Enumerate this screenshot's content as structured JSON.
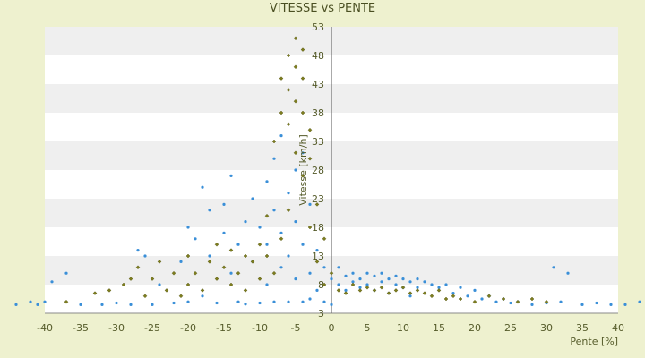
{
  "chart_data": {
    "type": "scatter",
    "title": "VITESSE vs PENTE",
    "xlabel": "Pente [%]",
    "ylabel": "Vitesse [km/h]",
    "xlim": [
      -40,
      40
    ],
    "ylim": [
      3,
      53
    ],
    "x_ticks": [
      -40,
      -35,
      -30,
      -25,
      -20,
      -15,
      -10,
      -5,
      0,
      5,
      10,
      15,
      20,
      25,
      30,
      35,
      40
    ],
    "y_ticks": [
      3,
      8,
      13,
      18,
      23,
      28,
      33,
      38,
      43,
      48,
      53
    ],
    "grid": "horizontal alternating bands",
    "legend": "none",
    "colors": {
      "series_a": "#3a8fd8",
      "series_b": "#7d7d1e",
      "band_light": "#ffffff",
      "band_dark": "#efefef",
      "background": "#eef1cf",
      "text": "#555b2a"
    },
    "series": [
      {
        "marker": "blue-dot",
        "color": "#3a8fd8",
        "points": [
          [
            -44,
            4.5
          ],
          [
            -42,
            5
          ],
          [
            -41,
            4.5
          ],
          [
            -40,
            5
          ],
          [
            -39,
            8.5
          ],
          [
            -37,
            10
          ],
          [
            -35,
            4.5
          ],
          [
            -32,
            4.5
          ],
          [
            -30,
            4.8
          ],
          [
            -28,
            4.5
          ],
          [
            -27,
            14
          ],
          [
            -26,
            13
          ],
          [
            -25,
            4.5
          ],
          [
            -24,
            8
          ],
          [
            -22,
            4.8
          ],
          [
            -21,
            12
          ],
          [
            -20,
            5
          ],
          [
            -20,
            18
          ],
          [
            -19,
            16
          ],
          [
            -18,
            25
          ],
          [
            -18,
            6
          ],
          [
            -17,
            13
          ],
          [
            -17,
            21
          ],
          [
            -16,
            4.8
          ],
          [
            -15,
            22
          ],
          [
            -15,
            17
          ],
          [
            -14,
            10
          ],
          [
            -14,
            27
          ],
          [
            -13,
            15
          ],
          [
            -13,
            5
          ],
          [
            -12,
            19
          ],
          [
            -12,
            4.6
          ],
          [
            -11,
            23
          ],
          [
            -11,
            12
          ],
          [
            -10,
            18
          ],
          [
            -10,
            4.8
          ],
          [
            -9,
            26
          ],
          [
            -9,
            15
          ],
          [
            -9,
            8
          ],
          [
            -8,
            21
          ],
          [
            -8,
            5
          ],
          [
            -8,
            30
          ],
          [
            -7,
            17
          ],
          [
            -7,
            11
          ],
          [
            -7,
            34
          ],
          [
            -6,
            24
          ],
          [
            -6,
            13
          ],
          [
            -6,
            5
          ],
          [
            -5,
            28
          ],
          [
            -5,
            19
          ],
          [
            -5,
            9
          ],
          [
            -4,
            31
          ],
          [
            -4,
            15
          ],
          [
            -4,
            5
          ],
          [
            -3,
            22
          ],
          [
            -3,
            10
          ],
          [
            -3,
            5.5
          ],
          [
            -2,
            14
          ],
          [
            -2,
            7
          ],
          [
            -1,
            11
          ],
          [
            -1,
            5
          ],
          [
            0,
            4.5
          ],
          [
            0,
            9
          ],
          [
            1,
            8
          ],
          [
            1,
            11
          ],
          [
            2,
            9.5
          ],
          [
            2,
            7
          ],
          [
            3,
            10
          ],
          [
            3,
            8.5
          ],
          [
            4,
            9
          ],
          [
            4,
            7.5
          ],
          [
            5,
            10
          ],
          [
            5,
            8
          ],
          [
            6,
            9.5
          ],
          [
            6,
            7
          ],
          [
            7,
            10
          ],
          [
            7,
            8.5
          ],
          [
            8,
            9
          ],
          [
            8,
            6.5
          ],
          [
            9,
            9.5
          ],
          [
            9,
            8
          ],
          [
            10,
            9
          ],
          [
            10,
            7.5
          ],
          [
            11,
            8.5
          ],
          [
            11,
            6
          ],
          [
            12,
            9
          ],
          [
            12,
            7.5
          ],
          [
            13,
            8.5
          ],
          [
            14,
            8
          ],
          [
            15,
            7.5
          ],
          [
            16,
            8
          ],
          [
            17,
            6.5
          ],
          [
            18,
            7.5
          ],
          [
            19,
            6
          ],
          [
            20,
            7
          ],
          [
            21,
            5.5
          ],
          [
            22,
            6
          ],
          [
            23,
            5
          ],
          [
            24,
            5.5
          ],
          [
            25,
            4.8
          ],
          [
            26,
            5
          ],
          [
            28,
            4.5
          ],
          [
            30,
            4.8
          ],
          [
            31,
            11
          ],
          [
            32,
            5
          ],
          [
            33,
            10
          ],
          [
            35,
            4.5
          ],
          [
            37,
            4.8
          ],
          [
            39,
            4.5
          ],
          [
            41,
            4.5
          ],
          [
            43,
            5
          ]
        ]
      },
      {
        "marker": "olive-diamond",
        "color": "#7d7d1e",
        "points": [
          [
            -37,
            5
          ],
          [
            -33,
            6.5
          ],
          [
            -31,
            7
          ],
          [
            -29,
            8
          ],
          [
            -28,
            9
          ],
          [
            -27,
            11
          ],
          [
            -26,
            6
          ],
          [
            -25,
            9
          ],
          [
            -24,
            12
          ],
          [
            -23,
            7
          ],
          [
            -22,
            10
          ],
          [
            -21,
            6
          ],
          [
            -20,
            13
          ],
          [
            -20,
            8
          ],
          [
            -19,
            10
          ],
          [
            -18,
            7
          ],
          [
            -17,
            12
          ],
          [
            -16,
            9
          ],
          [
            -16,
            15
          ],
          [
            -15,
            11
          ],
          [
            -14,
            8
          ],
          [
            -14,
            14
          ],
          [
            -13,
            10
          ],
          [
            -12,
            13
          ],
          [
            -12,
            7
          ],
          [
            -11,
            12
          ],
          [
            -10,
            15
          ],
          [
            -10,
            9
          ],
          [
            -9,
            20
          ],
          [
            -9,
            13
          ],
          [
            -8,
            33
          ],
          [
            -8,
            10
          ],
          [
            -7,
            38
          ],
          [
            -7,
            16
          ],
          [
            -7,
            44
          ],
          [
            -6,
            42
          ],
          [
            -6,
            48
          ],
          [
            -6,
            21
          ],
          [
            -6,
            36
          ],
          [
            -5,
            46
          ],
          [
            -5,
            51
          ],
          [
            -5,
            40
          ],
          [
            -5,
            31
          ],
          [
            -4,
            44
          ],
          [
            -4,
            38
          ],
          [
            -4,
            27
          ],
          [
            -4,
            49
          ],
          [
            -3,
            35
          ],
          [
            -3,
            30
          ],
          [
            -3,
            18
          ],
          [
            -2,
            22
          ],
          [
            -2,
            12
          ],
          [
            -1,
            16
          ],
          [
            -1,
            8
          ],
          [
            0,
            10
          ],
          [
            1,
            7
          ],
          [
            2,
            6.5
          ],
          [
            3,
            8
          ],
          [
            4,
            7
          ],
          [
            5,
            7.5
          ],
          [
            6,
            7
          ],
          [
            7,
            7.5
          ],
          [
            8,
            6.5
          ],
          [
            9,
            7
          ],
          [
            10,
            7.5
          ],
          [
            11,
            6.5
          ],
          [
            12,
            7
          ],
          [
            13,
            6.5
          ],
          [
            14,
            6
          ],
          [
            15,
            7
          ],
          [
            16,
            5.5
          ],
          [
            17,
            6
          ],
          [
            18,
            5.5
          ],
          [
            20,
            5
          ],
          [
            22,
            6
          ],
          [
            24,
            5.5
          ],
          [
            26,
            5
          ],
          [
            28,
            5.5
          ],
          [
            30,
            5
          ]
        ]
      }
    ]
  }
}
